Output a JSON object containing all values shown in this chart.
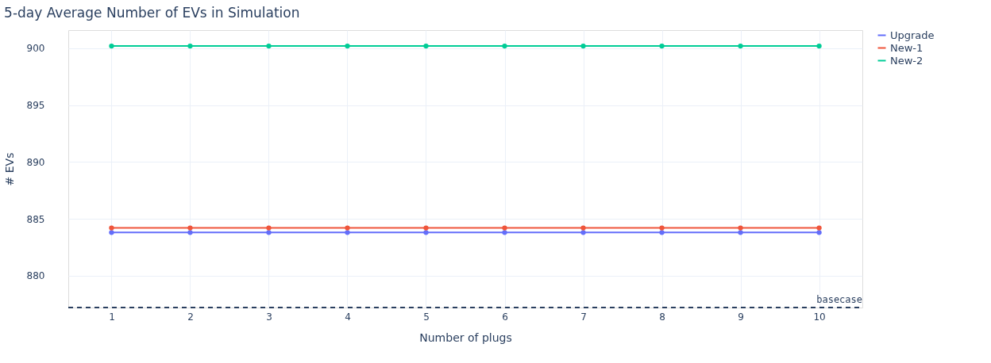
{
  "chart_data": {
    "type": "line",
    "title": "5-day Average Number of EVs in Simulation",
    "xlabel": "Number of plugs",
    "ylabel": "# EVs",
    "x": [
      1,
      2,
      3,
      4,
      5,
      6,
      7,
      8,
      9,
      10
    ],
    "series": [
      {
        "name": "Upgrade",
        "color": "#636efa",
        "values": [
          883.8,
          883.8,
          883.8,
          883.8,
          883.8,
          883.8,
          883.8,
          883.8,
          883.8,
          883.8
        ]
      },
      {
        "name": "New-1",
        "color": "#ef553b",
        "values": [
          884.2,
          884.2,
          884.2,
          884.2,
          884.2,
          884.2,
          884.2,
          884.2,
          884.2,
          884.2
        ]
      },
      {
        "name": "New-2",
        "color": "#00cc96",
        "values": [
          900.2,
          900.2,
          900.2,
          900.2,
          900.2,
          900.2,
          900.2,
          900.2,
          900.2,
          900.2
        ]
      }
    ],
    "xlim": [
      0.45,
      10.55
    ],
    "xticks": [
      1,
      2,
      3,
      4,
      5,
      6,
      7,
      8,
      9,
      10
    ],
    "ylim": [
      877.2,
      901.6
    ],
    "yticks": [
      880,
      885,
      890,
      895,
      900
    ],
    "ref_lines": [
      {
        "axis": "y",
        "value": 877.2,
        "label": "basecase",
        "color": "#2a3f5f",
        "line_style": "dashed"
      }
    ],
    "grid": true,
    "legend": "top right",
    "marker": "circle",
    "line_style": "solid"
  }
}
